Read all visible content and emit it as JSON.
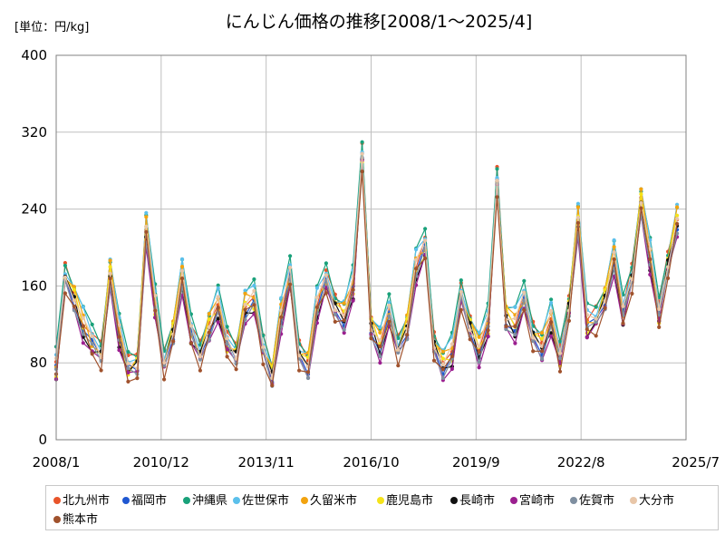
{
  "unit_label": "[単位：円/kg]",
  "chart_data": {
    "type": "line",
    "title": "にんじん価格の推移[2008/1～2025/4]",
    "xlabel": "",
    "ylabel": "",
    "x_tick_labels": [
      "2008/1",
      "2010/12",
      "2013/11",
      "2016/10",
      "2019/9",
      "2022/8",
      "2025/7"
    ],
    "y_ticks": [
      0,
      80,
      160,
      240,
      320,
      400
    ],
    "ylim": [
      0,
      400
    ],
    "xlim": [
      "2008/1",
      "2025/7"
    ],
    "grid": true,
    "legend_position": "bottom",
    "x": [
      "2008/1",
      "2008/4",
      "2008/7",
      "2008/10",
      "2009/1",
      "2009/4",
      "2009/7",
      "2009/10",
      "2010/1",
      "2010/4",
      "2010/7",
      "2010/10",
      "2011/1",
      "2011/4",
      "2011/7",
      "2011/10",
      "2012/1",
      "2012/4",
      "2012/7",
      "2012/10",
      "2013/1",
      "2013/4",
      "2013/7",
      "2013/10",
      "2014/1",
      "2014/4",
      "2014/7",
      "2014/10",
      "2015/1",
      "2015/4",
      "2015/7",
      "2015/10",
      "2016/1",
      "2016/4",
      "2016/7",
      "2016/10",
      "2017/1",
      "2017/4",
      "2017/7",
      "2017/10",
      "2018/1",
      "2018/4",
      "2018/7",
      "2018/10",
      "2019/1",
      "2019/4",
      "2019/7",
      "2019/10",
      "2020/1",
      "2020/4",
      "2020/7",
      "2020/10",
      "2021/1",
      "2021/4",
      "2021/7",
      "2021/10",
      "2022/1",
      "2022/4",
      "2022/7",
      "2022/10",
      "2023/1",
      "2023/4",
      "2023/7",
      "2023/10",
      "2024/1",
      "2024/4",
      "2024/7",
      "2024/10",
      "2025/1",
      "2025/4"
    ],
    "base": [
      75,
      170,
      150,
      120,
      100,
      90,
      175,
      110,
      75,
      80,
      220,
      140,
      80,
      115,
      170,
      110,
      90,
      120,
      140,
      100,
      90,
      140,
      145,
      95,
      70,
      130,
      170,
      90,
      80,
      140,
      165,
      140,
      130,
      160,
      295,
      120,
      100,
      130,
      95,
      120,
      180,
      200,
      100,
      80,
      90,
      150,
      120,
      95,
      120,
      270,
      130,
      120,
      145,
      110,
      100,
      125,
      85,
      140,
      230,
      120,
      125,
      150,
      190,
      130,
      170,
      250,
      190,
      130,
      185,
      230
    ],
    "series": [
      {
        "name": "北九州市",
        "color": "#E8542A",
        "offset": 6,
        "phase": 0
      },
      {
        "name": "福岡市",
        "color": "#1F57D1",
        "offset": -4,
        "phase": 1
      },
      {
        "name": "沖縄県",
        "color": "#19A17A",
        "offset": 14,
        "phase": 2
      },
      {
        "name": "佐世保市",
        "color": "#5BC0EB",
        "offset": 10,
        "phase": 3
      },
      {
        "name": "久留米市",
        "color": "#F2A30F",
        "offset": 4,
        "phase": 4
      },
      {
        "name": "鹿児島市",
        "color": "#F5E31A",
        "offset": -2,
        "phase": 5
      },
      {
        "name": "長崎市",
        "color": "#111111",
        "offset": -6,
        "phase": 6
      },
      {
        "name": "宮崎市",
        "color": "#9B1F8F",
        "offset": -12,
        "phase": 7
      },
      {
        "name": "佐賀市",
        "color": "#7F8FA0",
        "offset": -8,
        "phase": 8
      },
      {
        "name": "大分市",
        "color": "#E8C6A8",
        "offset": 2,
        "phase": 9
      },
      {
        "name": "熊本市",
        "color": "#A0522D",
        "offset": -10,
        "phase": 10
      }
    ]
  }
}
